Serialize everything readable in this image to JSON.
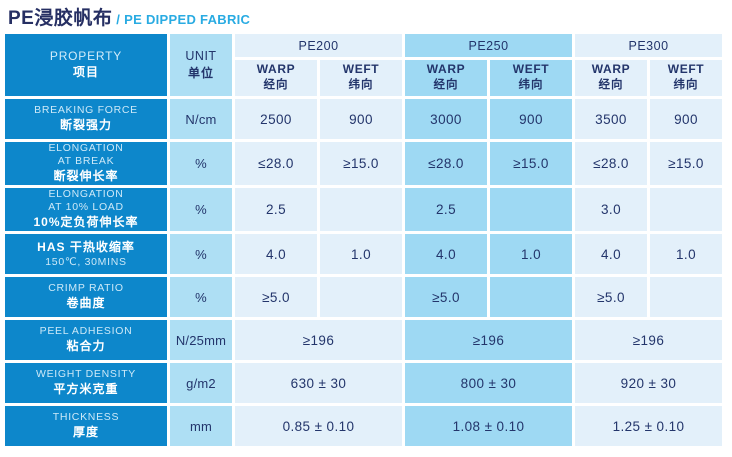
{
  "title": {
    "cn": "PE浸胶帆布",
    "en": " / PE DIPPED FABRIC"
  },
  "colors": {
    "property_column": "#0d87cb",
    "unit_column": "#aedff4",
    "pale_cell": "#e3f0fa",
    "highlight_cell": "#9ed9f3",
    "title_navy": "#262f63",
    "title_cyan": "#29abe2",
    "cell_text": "#23356b"
  },
  "table": {
    "property_header": {
      "en": "PROPERTY",
      "cn": "项目"
    },
    "unit_header": {
      "en": "UNIT",
      "cn": "单位"
    },
    "groups": [
      {
        "label": "PE200"
      },
      {
        "label": "PE250"
      },
      {
        "label": "PE300"
      }
    ],
    "subheaders": {
      "warp_en": "WARP",
      "warp_cn": "经向",
      "weft_en": "WEFT",
      "weft_cn": "纬向"
    },
    "rows": [
      {
        "label_lines": [
          {
            "text": "BREAKING FORCE",
            "style": "en"
          },
          {
            "text": "断裂强力",
            "style": "cn"
          }
        ],
        "unit": "N/cm",
        "merged": false,
        "groups": [
          [
            "2500",
            "900"
          ],
          [
            "3000",
            "900"
          ],
          [
            "3500",
            "900"
          ]
        ]
      },
      {
        "label_lines": [
          {
            "text": "ELONGATION",
            "style": "en"
          },
          {
            "text": "AT BREAK",
            "style": "en"
          },
          {
            "text": "断裂伸长率",
            "style": "cn"
          }
        ],
        "unit": "%",
        "merged": false,
        "groups": [
          [
            "≤28.0",
            "≥15.0"
          ],
          [
            "≤28.0",
            "≥15.0"
          ],
          [
            "≤28.0",
            "≥15.0"
          ]
        ]
      },
      {
        "label_lines": [
          {
            "text": "ELONGATION",
            "style": "en"
          },
          {
            "text": "AT 10% LOAD",
            "style": "en"
          },
          {
            "text": "10%定负荷伸长率",
            "style": "cn"
          }
        ],
        "unit": "%",
        "merged": false,
        "groups": [
          [
            "2.5",
            ""
          ],
          [
            "2.5",
            ""
          ],
          [
            "3.0",
            ""
          ]
        ]
      },
      {
        "label_lines": [
          {
            "text": "HAS  干热收缩率",
            "style": "cn"
          },
          {
            "text": "150℃, 30MINS",
            "style": "en"
          }
        ],
        "unit": "%",
        "merged": false,
        "groups": [
          [
            "4.0",
            "1.0"
          ],
          [
            "4.0",
            "1.0"
          ],
          [
            "4.0",
            "1.0"
          ]
        ]
      },
      {
        "label_lines": [
          {
            "text": "CRIMP RATIO",
            "style": "en"
          },
          {
            "text": "卷曲度",
            "style": "cn"
          }
        ],
        "unit": "%",
        "merged": false,
        "groups": [
          [
            "≥5.0",
            ""
          ],
          [
            "≥5.0",
            ""
          ],
          [
            "≥5.0",
            ""
          ]
        ]
      },
      {
        "label_lines": [
          {
            "text": "PEEL ADHESION",
            "style": "en"
          },
          {
            "text": "粘合力",
            "style": "cn"
          }
        ],
        "unit": "N/25mm",
        "merged": true,
        "groups": [
          "≥196",
          "≥196",
          "≥196"
        ]
      },
      {
        "label_lines": [
          {
            "text": "WEIGHT DENSITY",
            "style": "en"
          },
          {
            "text": "平方米克重",
            "style": "cn"
          }
        ],
        "unit": "g/m2",
        "merged": true,
        "groups": [
          "630 ± 30",
          "800 ± 30",
          "920 ± 30"
        ]
      },
      {
        "label_lines": [
          {
            "text": "THICKNESS",
            "style": "en"
          },
          {
            "text": "厚度",
            "style": "cn"
          }
        ],
        "unit": "mm",
        "merged": true,
        "groups": [
          "0.85 ± 0.10",
          "1.08 ± 0.10",
          "1.25 ± 0.10"
        ]
      }
    ]
  }
}
